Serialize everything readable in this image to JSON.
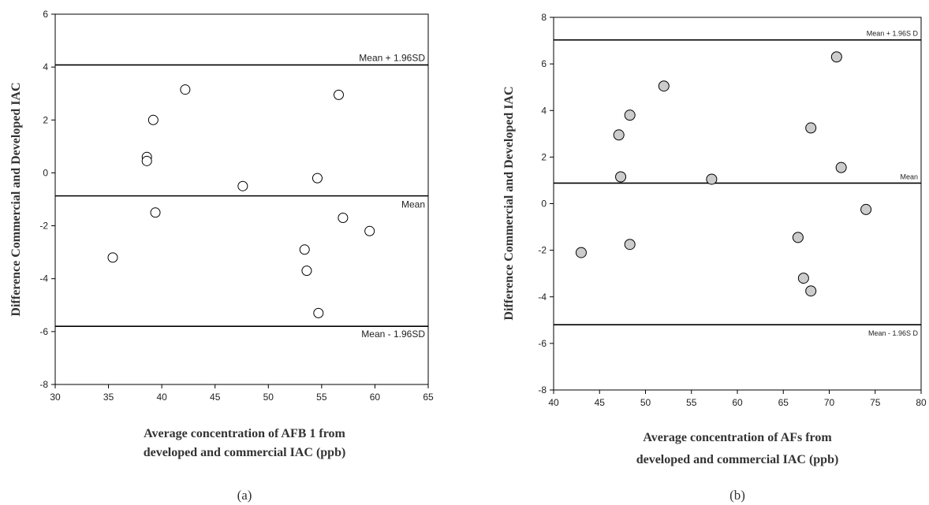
{
  "chart_data": [
    {
      "panel_label": "(a)",
      "type": "scatter",
      "xlabel_lines": [
        "Average  concentration of AFB 1 from",
        "developed and commercial IAC (ppb)"
      ],
      "ylabel": "Difference Commercial and Developed IAC",
      "xlim": [
        30,
        65
      ],
      "ylim": [
        -8,
        6
      ],
      "xticks": [
        30,
        35,
        40,
        45,
        50,
        55,
        60,
        65
      ],
      "yticks": [
        -8,
        -6,
        -4,
        -2,
        0,
        2,
        4,
        6
      ],
      "marker": "open-circle",
      "marker_fill": "#ffffff",
      "points": [
        {
          "x": 35.4,
          "y": -3.2
        },
        {
          "x": 38.6,
          "y": 0.6
        },
        {
          "x": 38.6,
          "y": 0.45
        },
        {
          "x": 39.2,
          "y": 2.0
        },
        {
          "x": 39.4,
          "y": -1.5
        },
        {
          "x": 42.2,
          "y": 3.15
        },
        {
          "x": 47.6,
          "y": -0.5
        },
        {
          "x": 53.4,
          "y": -2.9
        },
        {
          "x": 53.6,
          "y": -3.7
        },
        {
          "x": 54.6,
          "y": -0.2
        },
        {
          "x": 54.7,
          "y": -5.3
        },
        {
          "x": 56.6,
          "y": 2.95
        },
        {
          "x": 57.0,
          "y": -1.7
        },
        {
          "x": 59.5,
          "y": -2.2
        }
      ],
      "reference_lines": [
        {
          "label": "Mean + 1.96SD",
          "y": 4.08
        },
        {
          "label": "Mean",
          "y": -0.87
        },
        {
          "label": "Mean - 1.96SD",
          "y": -5.8
        }
      ]
    },
    {
      "panel_label": "(b)",
      "type": "scatter",
      "xlabel_lines": [
        "Average  concentration of AFs  from",
        "developed and commercial IAC (ppb)"
      ],
      "ylabel": "Difference Commercial and Developed IAC",
      "xlim": [
        40,
        80
      ],
      "ylim": [
        -8,
        8
      ],
      "xticks": [
        40,
        45,
        50,
        55,
        60,
        65,
        70,
        75,
        80
      ],
      "yticks": [
        -8,
        -6,
        -4,
        -2,
        0,
        2,
        4,
        6,
        8
      ],
      "marker": "filled-circle",
      "marker_fill": "#cccccc",
      "points": [
        {
          "x": 43.0,
          "y": -2.1
        },
        {
          "x": 47.1,
          "y": 2.95
        },
        {
          "x": 47.3,
          "y": 1.15
        },
        {
          "x": 48.3,
          "y": 3.8
        },
        {
          "x": 48.3,
          "y": -1.75
        },
        {
          "x": 52.0,
          "y": 5.05
        },
        {
          "x": 57.2,
          "y": 1.05
        },
        {
          "x": 66.6,
          "y": -1.45
        },
        {
          "x": 67.2,
          "y": -3.2
        },
        {
          "x": 68.0,
          "y": 3.25
        },
        {
          "x": 68.0,
          "y": -3.75
        },
        {
          "x": 70.8,
          "y": 6.3
        },
        {
          "x": 71.3,
          "y": 1.55
        },
        {
          "x": 74.0,
          "y": -0.25
        }
      ],
      "reference_lines": [
        {
          "label": "Mean + 1.96S D",
          "y": 7.03
        },
        {
          "label": "Mean",
          "y": 0.88
        },
        {
          "label": "Mean - 1.96S D",
          "y": -5.2
        }
      ]
    }
  ]
}
